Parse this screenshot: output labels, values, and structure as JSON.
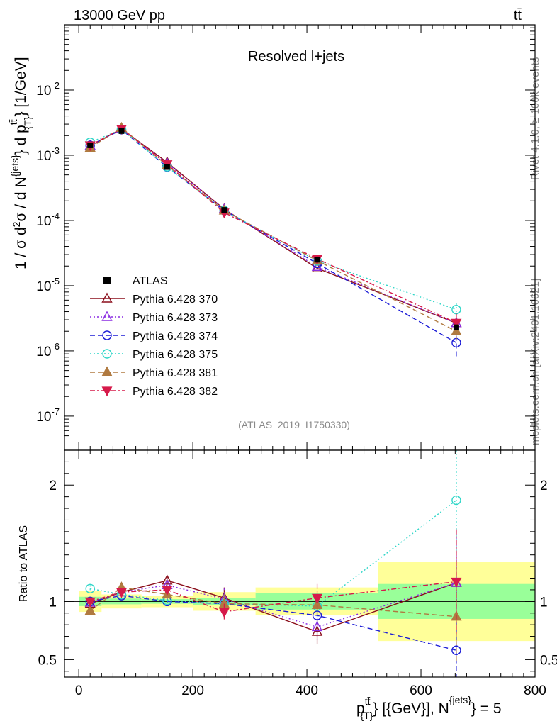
{
  "header": {
    "energy_label": "13000 GeV pp",
    "process_label": "tt̄"
  },
  "side_labels": {
    "rivet": "Rivet 4.1.0, ≥ 100k events",
    "mcplots": "mcplots.cern.ch [arXiv:2401.10621]"
  },
  "chart_data": {
    "type": "line",
    "title": "Resolved l+jets",
    "analysis_id": "(ATLAS_2019_I1750330)",
    "ylabel": "1 / σ d²σ / d N^{jets} d p_{T}^{tt̄} [1/GeV]",
    "ratio_ylabel": "Ratio to ATLAS",
    "xlabel": "p_{T}^{tt̄} [{GeV}], N^{jets} = 5",
    "x_range": [
      -25,
      800
    ],
    "y_range_log": [
      3e-08,
      0.1
    ],
    "ratio_range": [
      0.35,
      2.3
    ],
    "x_ticks": [
      0,
      200,
      400,
      600,
      800
    ],
    "y_ticks": [
      {
        "value": 1e-07,
        "mantissa": "10",
        "exp": "-7"
      },
      {
        "value": 1e-06,
        "mantissa": "10",
        "exp": "-6"
      },
      {
        "value": 1e-05,
        "mantissa": "10",
        "exp": "-5"
      },
      {
        "value": 0.0001,
        "mantissa": "10",
        "exp": "-4"
      },
      {
        "value": 0.001,
        "mantissa": "10",
        "exp": "-3"
      },
      {
        "value": 0.01,
        "mantissa": "10",
        "exp": "-2"
      }
    ],
    "ratio_ticks": [
      0.5,
      1,
      2
    ],
    "bins": [
      {
        "lo": 0,
        "hi": 40,
        "x": 20
      },
      {
        "lo": 40,
        "hi": 110,
        "x": 75
      },
      {
        "lo": 110,
        "hi": 200,
        "x": 155
      },
      {
        "lo": 200,
        "hi": 310,
        "x": 255
      },
      {
        "lo": 310,
        "hi": 525,
        "x": 418
      },
      {
        "lo": 525,
        "hi": 800,
        "x": 662
      }
    ],
    "data": {
      "name": "ATLAS",
      "values": [
        0.00142,
        0.00235,
        0.00066,
        0.000145,
        2.5e-05,
        2.3e-06
      ],
      "band_inner": [
        0.04,
        0.025,
        0.02,
        0.03,
        0.07,
        0.15
      ],
      "band_outer": [
        0.09,
        0.06,
        0.05,
        0.08,
        0.12,
        0.34
      ]
    },
    "series": [
      {
        "name": "Pythia 6.428 370",
        "color": "#8b0f1c",
        "dash": "",
        "marker": "triangle-open",
        "ratios": [
          0.98,
          1.08,
          1.18,
          1.03,
          0.74,
          1.16
        ],
        "ratio_err": [
          0.03,
          0.02,
          0.04,
          0.09,
          0.11,
          0.45
        ]
      },
      {
        "name": "Pythia 6.428 373",
        "color": "#8a2be2",
        "dash": "2,3",
        "marker": "triangle-open",
        "ratios": [
          0.99,
          1.08,
          1.14,
          1.02,
          0.78,
          1.16
        ],
        "ratio_err": [
          0.03,
          0.02,
          0.04,
          0.09,
          0.11,
          0.45
        ]
      },
      {
        "name": "Pythia 6.428 374",
        "color": "#1c1cd6",
        "dash": "7,4",
        "marker": "circle-open",
        "ratios": [
          1.0,
          1.05,
          1.0,
          0.98,
          0.88,
          0.58
        ],
        "ratio_err": [
          0.03,
          0.02,
          0.03,
          0.08,
          0.1,
          0.4
        ]
      },
      {
        "name": "Pythia 6.428 375",
        "color": "#2fd6c8",
        "dash": "2,3",
        "marker": "circle-open",
        "ratios": [
          1.11,
          1.06,
          1.01,
          0.98,
          0.96,
          1.87
        ],
        "ratio_err": [
          0.03,
          0.02,
          0.03,
          0.08,
          0.1,
          0.45
        ]
      },
      {
        "name": "Pythia 6.428 381",
        "color": "#b07a40",
        "dash": "7,4",
        "marker": "triangle-filled",
        "ratios": [
          0.92,
          1.12,
          1.06,
          0.98,
          0.97,
          0.87
        ],
        "ratio_err": [
          0.03,
          0.02,
          0.03,
          0.08,
          0.1,
          0.4
        ]
      },
      {
        "name": "Pythia 6.428 382",
        "color": "#d61a4a",
        "dash": "7,3,2,3",
        "marker": "triangle-down-filled",
        "ratios": [
          1.0,
          1.08,
          1.1,
          0.91,
          1.03,
          1.17
        ],
        "ratio_err": [
          0.03,
          0.02,
          0.03,
          0.07,
          0.12,
          0.45
        ]
      }
    ]
  }
}
